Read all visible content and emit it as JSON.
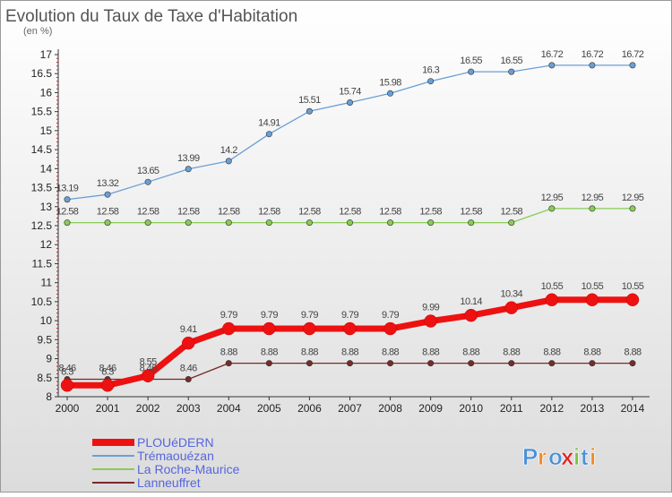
{
  "chart_data": {
    "type": "line",
    "title": "Evolution du Taux de Taxe d'Habitation",
    "subtitle": "(en %)",
    "x": [
      "2000",
      "2001",
      "2002",
      "2003",
      "2004",
      "2005",
      "2006",
      "2007",
      "2008",
      "2009",
      "2010",
      "2011",
      "2012",
      "2013",
      "2014"
    ],
    "ylim": [
      8,
      17
    ],
    "yticks": [
      "8",
      "8.5",
      "9",
      "9.5",
      "10",
      "10.5",
      "11",
      "11.5",
      "12",
      "12.5",
      "13",
      "13.5",
      "14",
      "14.5",
      "15",
      "15.5",
      "16",
      "16.5",
      "17"
    ],
    "grid": false,
    "legend_position": "bottom-left",
    "series": [
      {
        "name": "PLOUéDERN",
        "color": "#ee1111",
        "values": [
          8.3,
          8.3,
          8.55,
          9.41,
          9.79,
          9.79,
          9.79,
          9.79,
          9.79,
          9.99,
          10.14,
          10.34,
          10.55,
          10.55,
          10.55
        ],
        "labels": [
          "8.3",
          "8.3",
          "8.55",
          "9.41",
          "9.79",
          "9.79",
          "9.79",
          "9.79",
          "9.79",
          "9.99",
          "10.14",
          "10.34",
          "10.55",
          "10.55",
          "10.55"
        ]
      },
      {
        "name": "Trémaouézan",
        "color": "#6a9fd4",
        "values": [
          13.19,
          13.32,
          13.65,
          13.99,
          14.2,
          14.91,
          15.51,
          15.74,
          15.98,
          16.3,
          16.55,
          16.55,
          16.72,
          16.72,
          16.72
        ],
        "labels": [
          "13.19",
          "13.32",
          "13.65",
          "13.99",
          "14.2",
          "14.91",
          "15.51",
          "15.74",
          "15.98",
          "16.3",
          "16.55",
          "16.55",
          "16.72",
          "16.72",
          "16.72"
        ]
      },
      {
        "name": "La Roche-Maurice",
        "color": "#88cc55",
        "values": [
          12.58,
          12.58,
          12.58,
          12.58,
          12.58,
          12.58,
          12.58,
          12.58,
          12.58,
          12.58,
          12.58,
          12.58,
          12.95,
          12.95,
          12.95
        ],
        "labels": [
          "12.58",
          "12.58",
          "12.58",
          "12.58",
          "12.58",
          "12.58",
          "12.58",
          "12.58",
          "12.58",
          "12.58",
          "12.58",
          "12.58",
          "12.95",
          "12.95",
          "12.95"
        ]
      },
      {
        "name": "Lanneuffret",
        "color": "#7a2a2a",
        "values": [
          8.46,
          8.46,
          8.46,
          8.46,
          8.88,
          8.88,
          8.88,
          8.88,
          8.88,
          8.88,
          8.88,
          8.88,
          8.88,
          8.88,
          8.88
        ],
        "labels": [
          "8.46",
          "8.46",
          "8.46",
          "8.46",
          "8.88",
          "8.88",
          "8.88",
          "8.88",
          "8.88",
          "8.88",
          "8.88",
          "8.88",
          "8.88",
          "8.88",
          "8.88"
        ]
      }
    ]
  },
  "brand": {
    "logo_text": "Proxiti",
    "letter_colors": [
      "#4a90d9",
      "#f08a24",
      "#4a90d9",
      "#e02020",
      "#7cc242",
      "#4a90d9",
      "#f08a24"
    ]
  }
}
